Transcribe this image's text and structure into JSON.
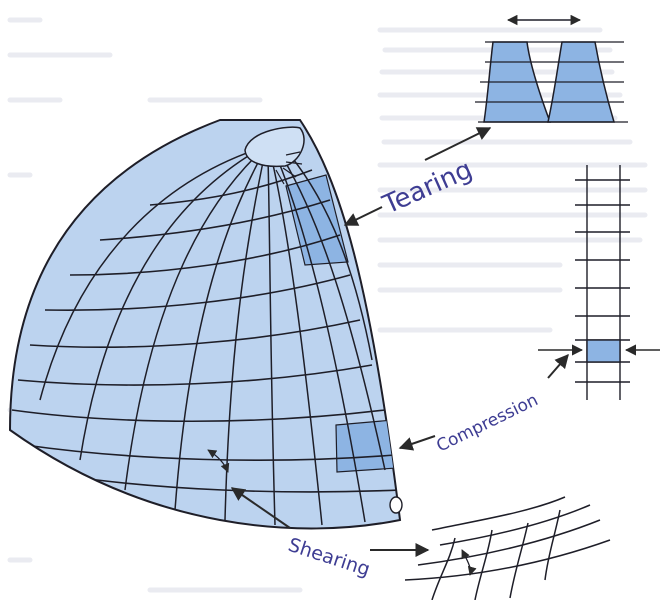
{
  "diagram": {
    "labels": {
      "tearing": "Tearing",
      "compression": "Compression",
      "shearing": "Shearing"
    },
    "colors": {
      "dome_fill": "#bcd3ef",
      "dome_fill_dark": "#8db4e3",
      "grid_line": "#1e1e28",
      "label_text": "#3e3d93",
      "arrow": "#2a2a2a"
    }
  }
}
